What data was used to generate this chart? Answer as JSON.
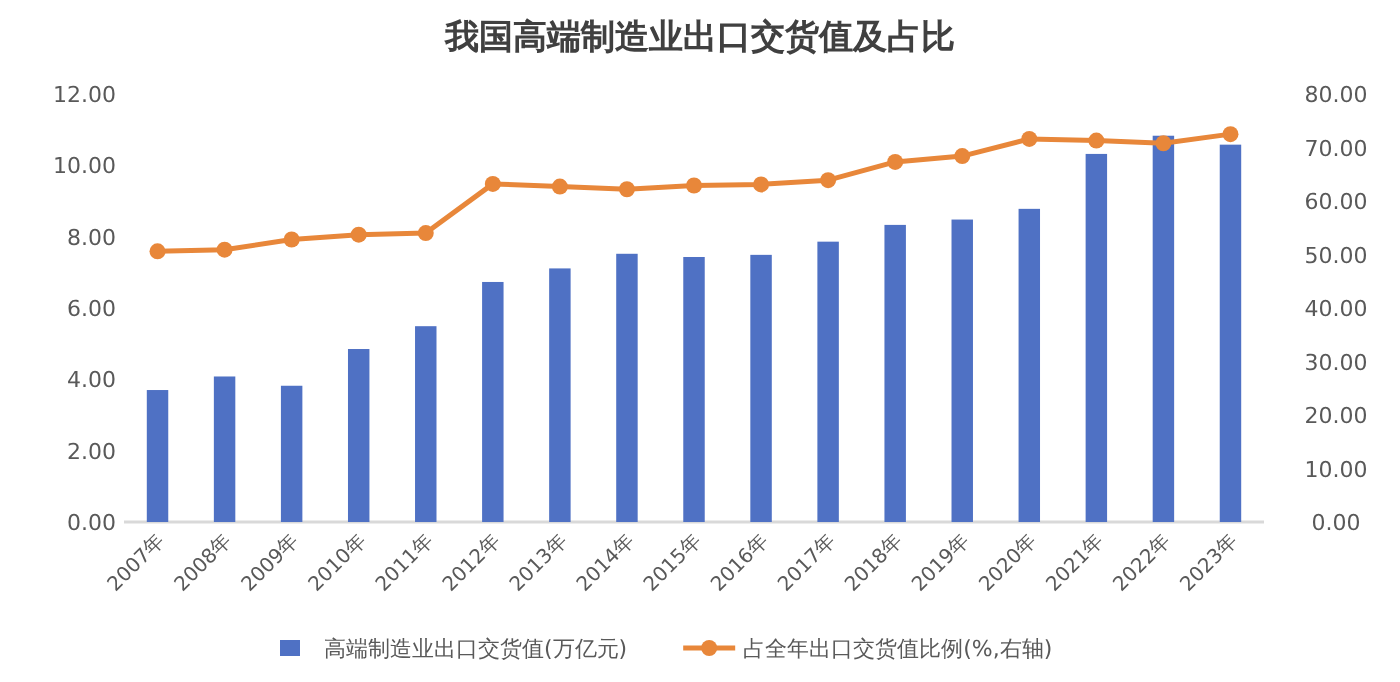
{
  "chart_data": {
    "type": "bar",
    "title": "我国高端制造业出口交货值及占比",
    "categories": [
      "2007年",
      "2008年",
      "2009年",
      "2010年",
      "2011年",
      "2012年",
      "2013年",
      "2014年",
      "2015年",
      "2016年",
      "2017年",
      "2018年",
      "2019年",
      "2020年",
      "2021年",
      "2022年",
      "2023年"
    ],
    "series": [
      {
        "name": "高端制造业出口交货值(万亿元)",
        "color": "#4f71c4",
        "values": [
          3.7,
          4.08,
          3.82,
          4.85,
          5.49,
          6.73,
          7.11,
          7.52,
          7.43,
          7.49,
          7.86,
          8.33,
          8.48,
          8.78,
          10.32,
          10.83,
          10.58
        ]
      },
      {
        "name": "占全年出口交货值比例(%,右轴)",
        "type": "line",
        "axis": "y2",
        "color": "#e8873a",
        "marker": "circle",
        "values": [
          50.6,
          50.9,
          52.8,
          53.7,
          54.0,
          63.2,
          62.7,
          62.2,
          62.9,
          63.1,
          63.9,
          67.3,
          68.4,
          71.6,
          71.3,
          70.8,
          72.5
        ]
      }
    ],
    "ylim": [
      0,
      12
    ],
    "yticks": [
      {
        "value": 0,
        "label": "0.00"
      },
      {
        "value": 2,
        "label": "2.00"
      },
      {
        "value": 4,
        "label": "4.00"
      },
      {
        "value": 6,
        "label": "6.00"
      },
      {
        "value": 8,
        "label": "8.00"
      },
      {
        "value": 10,
        "label": "10.00"
      },
      {
        "value": 12,
        "label": "12.00"
      }
    ],
    "y2lim": [
      0,
      80
    ],
    "y2ticks": [
      {
        "value": 0,
        "label": "0.00"
      },
      {
        "value": 10,
        "label": "10.00"
      },
      {
        "value": 20,
        "label": "20.00"
      },
      {
        "value": 30,
        "label": "30.00"
      },
      {
        "value": 40,
        "label": "40.00"
      },
      {
        "value": 50,
        "label": "50.00"
      },
      {
        "value": 60,
        "label": "60.00"
      },
      {
        "value": 70,
        "label": "70.00"
      },
      {
        "value": 80,
        "label": "80.00"
      }
    ],
    "legend": "bottom",
    "grid": false
  }
}
